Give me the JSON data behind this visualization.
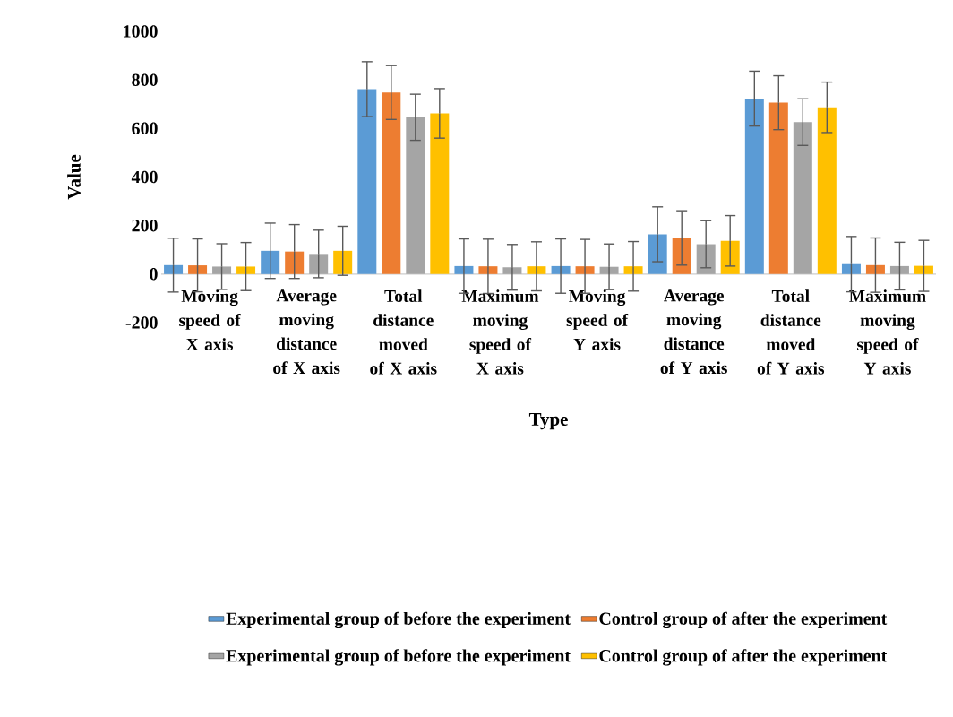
{
  "chart_data": {
    "type": "bar",
    "xlabel": "Type",
    "ylabel": "Value",
    "categories": [
      "Moving speed of X axis",
      "Average moving distance of X axis",
      "Total distance moved of X axis",
      "Maximum moving speed of X axis",
      "Moving speed of Y axis",
      "Average moving distance of Y axis",
      "Total distance moved of Y axis",
      "Maximum moving speed of Y axis"
    ],
    "series": [
      {
        "name": "Experimental group of before the experiment",
        "color": "#5b9bd5",
        "values": [
          37,
          96,
          762,
          33,
          33,
          164,
          723,
          41
        ],
        "errors": [
          111,
          114,
          113,
          112,
          112,
          113,
          113,
          114
        ]
      },
      {
        "name": "Control group of after the experiment",
        "color": "#ed7d31",
        "values": [
          36,
          93,
          748,
          32,
          32,
          149,
          706,
          37
        ],
        "errors": [
          109,
          111,
          111,
          112,
          111,
          112,
          111,
          112
        ]
      },
      {
        "name": "Experimental group of before the experiment",
        "color": "#a5a5a5",
        "values": [
          31,
          83,
          646,
          28,
          30,
          123,
          626,
          33
        ],
        "errors": [
          94,
          98,
          95,
          94,
          94,
          97,
          96,
          98
        ]
      },
      {
        "name": "Control group of after the experiment",
        "color": "#ffc000",
        "values": [
          31,
          96,
          662,
          32,
          32,
          137,
          687,
          34
        ],
        "errors": [
          99,
          101,
          102,
          101,
          102,
          104,
          104,
          105
        ]
      }
    ],
    "ylim": [
      -200,
      1000
    ],
    "yticks": [
      -200,
      0,
      200,
      400,
      600,
      800,
      1000
    ],
    "legend": "bottom"
  }
}
